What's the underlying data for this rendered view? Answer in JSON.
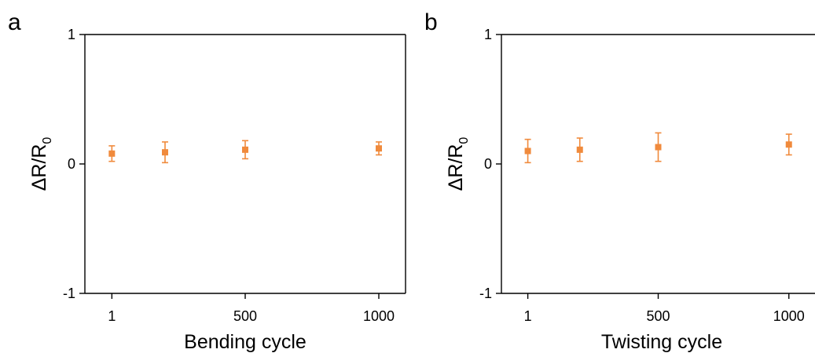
{
  "chart_data": [
    {
      "panel": "a",
      "type": "scatter",
      "title": "",
      "xlabel": "Bending cycle",
      "ylabel": {
        "main": "ΔR/R",
        "subscript": "0"
      },
      "xticks": [
        {
          "label": "1",
          "value": 1
        },
        {
          "label": "500",
          "value": 500
        },
        {
          "label": "1000",
          "value": 1000
        }
      ],
      "yticks": [
        {
          "label": "1",
          "value": 1
        },
        {
          "label": "0",
          "value": 0
        },
        {
          "label": "-1",
          "value": -1
        }
      ],
      "xlim": [
        -100,
        1100
      ],
      "ylim": [
        -1,
        1
      ],
      "grid": false,
      "series": [
        {
          "x": [
            1,
            200,
            500,
            1000
          ],
          "y": [
            0.08,
            0.09,
            0.11,
            0.12
          ],
          "yerr": [
            0.06,
            0.08,
            0.07,
            0.05
          ],
          "color": "#F08A3C"
        }
      ]
    },
    {
      "panel": "b",
      "type": "scatter",
      "title": "",
      "xlabel": "Twisting cycle",
      "ylabel": {
        "main": "ΔR/R",
        "subscript": "0"
      },
      "xticks": [
        {
          "label": "1",
          "value": 1
        },
        {
          "label": "500",
          "value": 500
        },
        {
          "label": "1000",
          "value": 1000
        }
      ],
      "yticks": [
        {
          "label": "1",
          "value": 1
        },
        {
          "label": "0",
          "value": 0
        },
        {
          "label": "-1",
          "value": -1
        }
      ],
      "xlim": [
        -100,
        1100
      ],
      "ylim": [
        -1,
        1
      ],
      "grid": false,
      "series": [
        {
          "x": [
            1,
            200,
            500,
            1000
          ],
          "y": [
            0.1,
            0.11,
            0.13,
            0.15
          ],
          "yerr": [
            0.09,
            0.09,
            0.11,
            0.08
          ],
          "color": "#F08A3C"
        }
      ]
    }
  ]
}
